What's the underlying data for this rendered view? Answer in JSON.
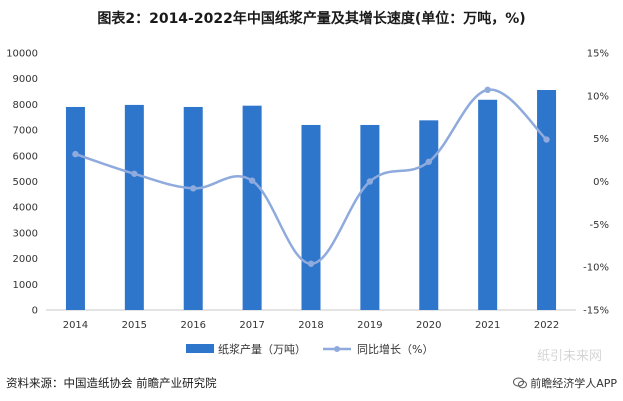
{
  "chart_data": {
    "type": "bar",
    "title": "图表2：2014-2022年中国纸浆产量及其增长速度(单位：万吨，%)",
    "categories": [
      "2014",
      "2015",
      "2016",
      "2017",
      "2018",
      "2019",
      "2020",
      "2021",
      "2022"
    ],
    "series": [
      {
        "name": "纸浆产量（万吨）",
        "type": "bar",
        "axis": "left",
        "color": "#2E75CC",
        "values": [
          7900,
          7980,
          7900,
          7950,
          7200,
          7200,
          7380,
          8180,
          8560
        ]
      },
      {
        "name": "同比增长（%）",
        "type": "line",
        "axis": "right",
        "color": "#8FAADC",
        "values": [
          3.2,
          0.9,
          -0.8,
          0.1,
          -9.6,
          0.0,
          2.3,
          10.7,
          4.9
        ]
      }
    ],
    "y_left": {
      "min": 0,
      "max": 10000,
      "ticks": [
        0,
        1000,
        2000,
        3000,
        4000,
        5000,
        6000,
        7000,
        8000,
        9000,
        10000
      ]
    },
    "y_right": {
      "min": -15,
      "max": 15,
      "ticks": [
        "-15%",
        "-10%",
        "-5%",
        "0%",
        "5%",
        "10%",
        "15%"
      ]
    },
    "legend_position": "bottom",
    "grid": false
  },
  "source_text": "资料来源：中国造纸协会 前瞻产业研究院",
  "brand": {
    "icon": "wechat-icon",
    "text": "前瞻经济学人APP",
    "watermark_text": "纸引未来网"
  }
}
